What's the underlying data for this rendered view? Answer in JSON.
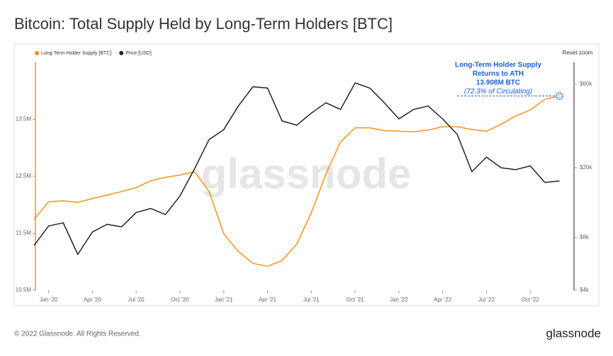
{
  "chart_data": {
    "type": "line",
    "title": "Bitcoin: Total Supply Held by Long-Term Holders [BTC]",
    "watermark": "glassnode",
    "reset_button": "Reset zoom",
    "footer": "© 2022 Glassnode. All Rights Reserved.",
    "logo": "glassnode",
    "annotation": [
      "Long-Term Holder Supply",
      "Returns to ATH",
      "13.908M BTC",
      "(72.3% of Circulating)"
    ],
    "annotation_color": "#1a5fd6",
    "x": [
      "2019-12",
      "2020-01",
      "2020-02",
      "2020-03",
      "2020-04",
      "2020-05",
      "2020-06",
      "2020-07",
      "2020-08",
      "2020-09",
      "2020-10",
      "2020-11",
      "2020-12",
      "2021-01",
      "2021-02",
      "2021-03",
      "2021-04",
      "2021-05",
      "2021-06",
      "2021-07",
      "2021-08",
      "2021-09",
      "2021-10",
      "2021-11",
      "2021-12",
      "2022-01",
      "2022-02",
      "2022-03",
      "2022-04",
      "2022-05",
      "2022-06",
      "2022-07",
      "2022-08",
      "2022-09",
      "2022-10",
      "2022-11",
      "2022-12"
    ],
    "xlim": [
      "2019-12",
      "2023-01"
    ],
    "xticks": [
      {
        "value": "2020-01",
        "label": "Jan '20"
      },
      {
        "value": "2020-04",
        "label": "Apr '20"
      },
      {
        "value": "2020-07",
        "label": "Jul '20"
      },
      {
        "value": "2020-10",
        "label": "Oct '20"
      },
      {
        "value": "2021-01",
        "label": "Jan '21"
      },
      {
        "value": "2021-04",
        "label": "Apr '21"
      },
      {
        "value": "2021-07",
        "label": "Jul '21"
      },
      {
        "value": "2021-10",
        "label": "Oct '21"
      },
      {
        "value": "2022-01",
        "label": "Jan '22"
      },
      {
        "value": "2022-04",
        "label": "Apr '22"
      },
      {
        "value": "2022-07",
        "label": "Jul '22"
      },
      {
        "value": "2022-10",
        "label": "Oct '22"
      }
    ],
    "ylim": [
      10.5,
      14.5
    ],
    "yticks": [
      {
        "value": 10.5,
        "label": "10.5M"
      },
      {
        "value": 11.5,
        "label": "11.5M"
      },
      {
        "value": 12.5,
        "label": "12.5M"
      },
      {
        "value": 13.5,
        "label": "13.5M"
      }
    ],
    "y2lim": [
      4000,
      80000
    ],
    "y2_log": true,
    "y2ticks": [
      {
        "value": 4000,
        "label": "$4k"
      },
      {
        "value": 8000,
        "label": "$8k"
      },
      {
        "value": 20000,
        "label": "$20k"
      },
      {
        "value": 60000,
        "label": "$60k"
      }
    ],
    "series": [
      {
        "name": "Long-Term Holder Supply [BTC]",
        "color": "#f7931a",
        "values": [
          11.74,
          12.05,
          12.07,
          12.04,
          12.11,
          12.17,
          12.23,
          12.3,
          12.42,
          12.48,
          12.52,
          12.58,
          12.23,
          11.49,
          11.18,
          10.97,
          10.92,
          11.02,
          11.31,
          11.86,
          12.54,
          13.1,
          13.35,
          13.35,
          13.3,
          13.29,
          13.28,
          13.31,
          13.37,
          13.37,
          13.32,
          13.29,
          13.41,
          13.56,
          13.66,
          13.85,
          13.908
        ]
      },
      {
        "name": "Price [USD]",
        "color": "#222222",
        "axis": "y2",
        "values": [
          7200,
          9300,
          9700,
          6400,
          8600,
          9500,
          9200,
          11100,
          11700,
          10800,
          13800,
          19700,
          29000,
          33000,
          45000,
          58000,
          57000,
          37000,
          35000,
          41000,
          47000,
          43000,
          61000,
          57000,
          47000,
          38000,
          43000,
          45000,
          38000,
          31000,
          19000,
          23000,
          20000,
          19500,
          20500,
          16500,
          16800
        ]
      }
    ]
  }
}
